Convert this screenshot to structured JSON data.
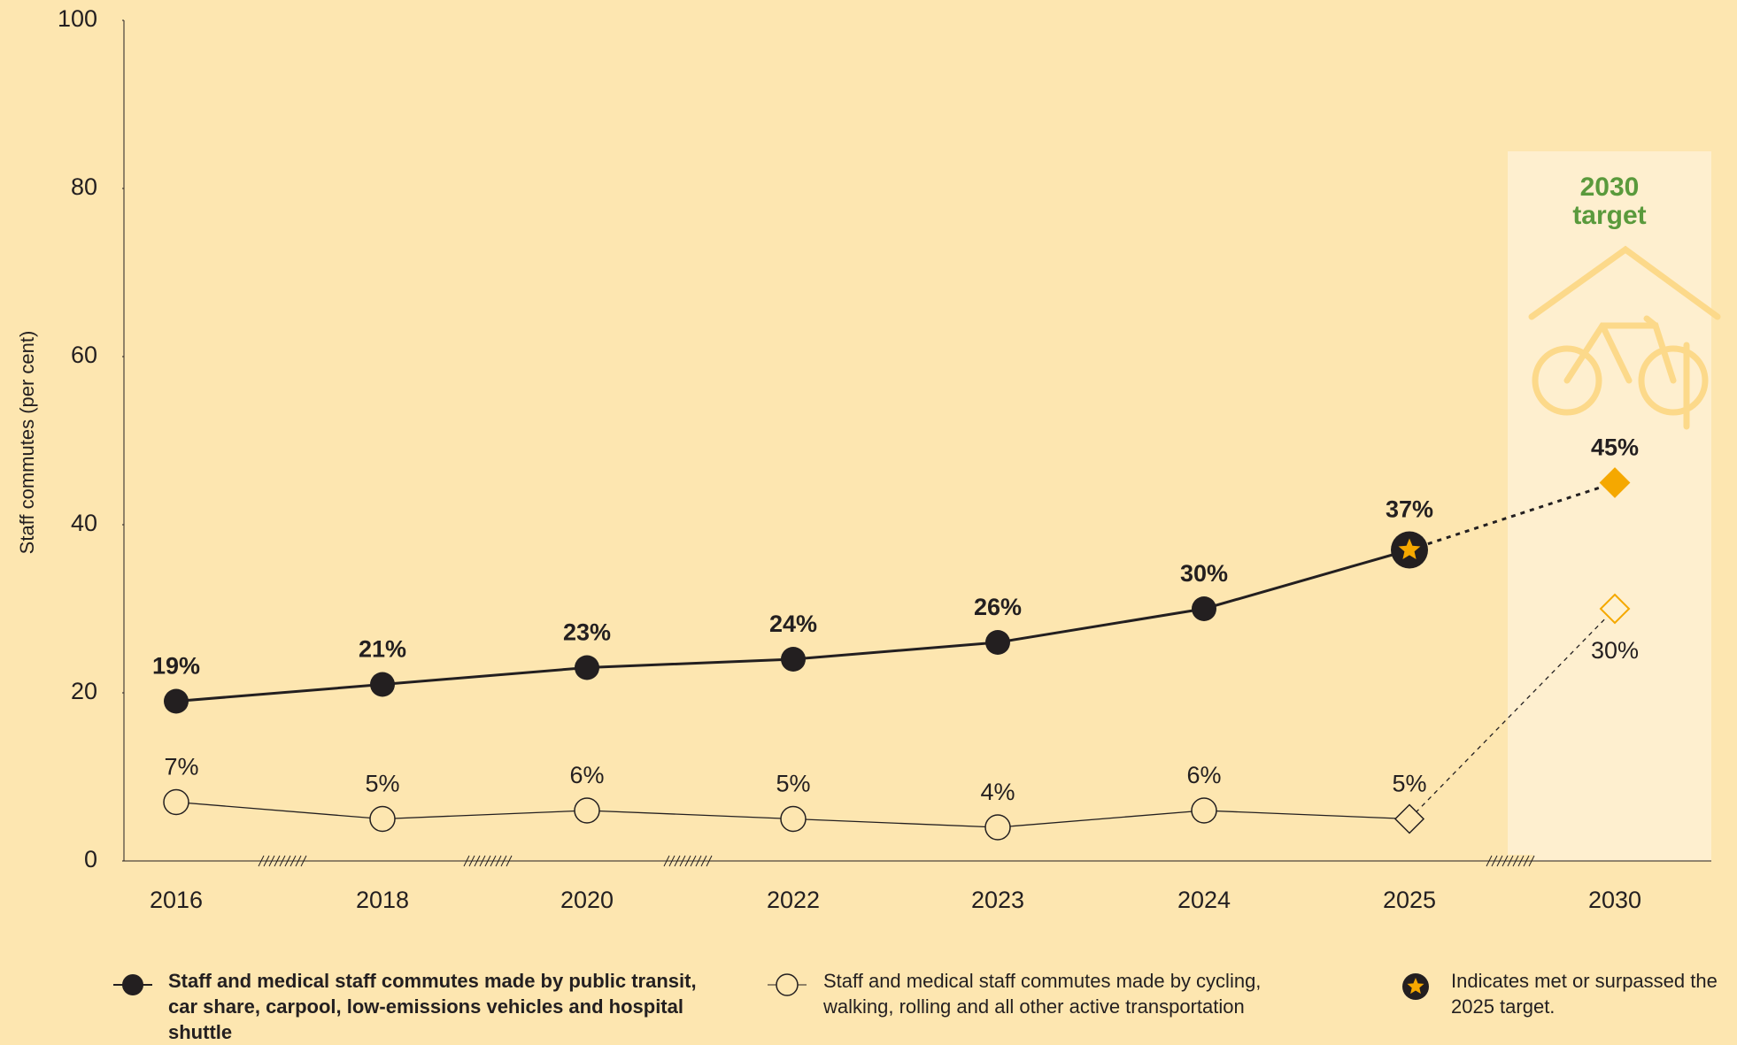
{
  "chart_data": {
    "type": "line",
    "y_label": "Staff commutes (per cent)",
    "annotation": "2030 target",
    "categories": [
      "2016",
      "2018",
      "2020",
      "2022",
      "2023",
      "2024",
      "2025",
      "2030"
    ],
    "series": [
      {
        "name": "Staff and medical staff commutes made by public transit, car share, carpool, low-emissions vehicles and hospital shuttle",
        "color": "#231f20",
        "values": [
          19,
          21,
          23,
          24,
          26,
          30,
          37,
          45
        ],
        "value_labels": [
          "19%",
          "21%",
          "23%",
          "24%",
          "26%",
          "30%",
          "37%",
          "45%"
        ]
      },
      {
        "name": "Staff and medical staff commutes made by cycling, walking, rolling and all other active transportation",
        "color": "#231f20",
        "values": [
          7,
          5,
          6,
          5,
          4,
          6,
          5,
          30
        ],
        "value_labels": [
          "7%",
          "5%",
          "6%",
          "5%",
          "4%",
          "6%",
          "5%",
          "30%"
        ]
      }
    ],
    "target_note": "Indicates met or surpassed the 2025 target.",
    "target_color": "#f5a800",
    "ylim": [
      0,
      100
    ],
    "yticks": [
      0,
      20,
      40,
      60,
      80,
      100
    ],
    "grid": false
  }
}
